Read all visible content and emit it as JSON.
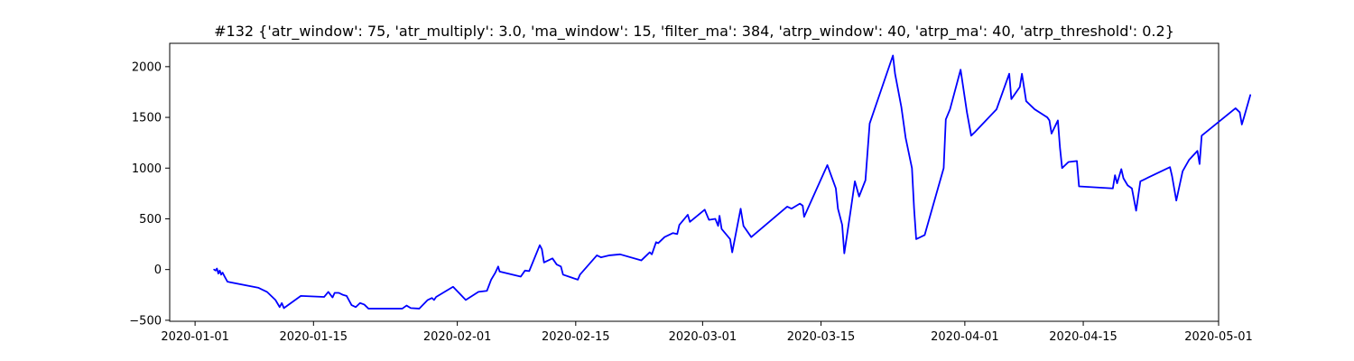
{
  "chart_data": {
    "type": "line",
    "title": "#132 {'atr_window': 75, 'atr_multiply': 3.0, 'ma_window': 15, 'filter_ma': 384, 'atrp_window': 40, 'atrp_ma': 40, 'atrp_threshold': 0.2}",
    "xlabel": "",
    "ylabel": "",
    "grid": false,
    "legend": "none",
    "x_axis": {
      "type": "date",
      "range": [
        "2019-12-29",
        "2020-05-01"
      ],
      "ticks": [
        "2020-01-01",
        "2020-01-15",
        "2020-02-01",
        "2020-02-15",
        "2020-03-01",
        "2020-03-15",
        "2020-04-01",
        "2020-04-15",
        "2020-05-01"
      ]
    },
    "y_axis": {
      "range": [
        -510,
        2230
      ],
      "ticks": [
        -500,
        0,
        500,
        1000,
        1500,
        2000
      ],
      "tick_labels": [
        "−500",
        "0",
        "500",
        "1000",
        "1500",
        "2000"
      ]
    },
    "series": [
      {
        "name": "",
        "color": "#0000ff",
        "points": [
          [
            "2020-01-03T06:00",
            0
          ],
          [
            "2020-01-03T10:00",
            -10
          ],
          [
            "2020-01-03T14:00",
            10
          ],
          [
            "2020-01-03T18:00",
            -40
          ],
          [
            "2020-01-03T22:00",
            -10
          ],
          [
            "2020-01-04T02:00",
            -50
          ],
          [
            "2020-01-04T06:00",
            -30
          ],
          [
            "2020-01-04T12:00",
            -70
          ],
          [
            "2020-01-04T20:00",
            -120
          ],
          [
            "2020-01-08T12:00",
            -180
          ],
          [
            "2020-01-09T12:00",
            -220
          ],
          [
            "2020-01-10T12:00",
            -300
          ],
          [
            "2020-01-11T00:00",
            -370
          ],
          [
            "2020-01-11T06:00",
            -330
          ],
          [
            "2020-01-11T12:00",
            -380
          ],
          [
            "2020-01-13T12:00",
            -260
          ],
          [
            "2020-01-16T06:00",
            -270
          ],
          [
            "2020-01-16T18:00",
            -220
          ],
          [
            "2020-01-17T06:00",
            -275
          ],
          [
            "2020-01-17T12:00",
            -230
          ],
          [
            "2020-01-18T00:00",
            -230
          ],
          [
            "2020-01-18T12:00",
            -250
          ],
          [
            "2020-01-18T22:00",
            -260
          ],
          [
            "2020-01-19T12:00",
            -350
          ],
          [
            "2020-01-20T00:00",
            -370
          ],
          [
            "2020-01-20T12:00",
            -330
          ],
          [
            "2020-01-21T00:00",
            -345
          ],
          [
            "2020-01-21T12:00",
            -385
          ],
          [
            "2020-01-25T12:00",
            -385
          ],
          [
            "2020-01-26T00:00",
            -355
          ],
          [
            "2020-01-26T12:00",
            -380
          ],
          [
            "2020-01-27T12:00",
            -385
          ],
          [
            "2020-01-28T12:00",
            -300
          ],
          [
            "2020-01-29T00:00",
            -280
          ],
          [
            "2020-01-29T06:00",
            -300
          ],
          [
            "2020-01-29T12:00",
            -270
          ],
          [
            "2020-01-31T12:00",
            -170
          ],
          [
            "2020-02-02T00:00",
            -300
          ],
          [
            "2020-02-03T12:00",
            -220
          ],
          [
            "2020-02-04T12:00",
            -210
          ],
          [
            "2020-02-05T00:00",
            -100
          ],
          [
            "2020-02-05T12:00",
            -30
          ],
          [
            "2020-02-05T20:00",
            30
          ],
          [
            "2020-02-06T00:00",
            -20
          ],
          [
            "2020-02-08T12:00",
            -70
          ],
          [
            "2020-02-09T00:00",
            -10
          ],
          [
            "2020-02-09T12:00",
            -15
          ],
          [
            "2020-02-10T18:00",
            240
          ],
          [
            "2020-02-11T00:00",
            200
          ],
          [
            "2020-02-11T06:00",
            70
          ],
          [
            "2020-02-12T06:00",
            110
          ],
          [
            "2020-02-12T18:00",
            50
          ],
          [
            "2020-02-13T06:00",
            30
          ],
          [
            "2020-02-13T12:00",
            -50
          ],
          [
            "2020-02-15T06:00",
            -100
          ],
          [
            "2020-02-15T12:00",
            -50
          ],
          [
            "2020-02-17T12:00",
            140
          ],
          [
            "2020-02-18T00:00",
            120
          ],
          [
            "2020-02-19T00:00",
            140
          ],
          [
            "2020-02-20T06:00",
            150
          ],
          [
            "2020-02-22T18:00",
            90
          ],
          [
            "2020-02-23T18:00",
            170
          ],
          [
            "2020-02-24T00:00",
            150
          ],
          [
            "2020-02-24T12:00",
            270
          ],
          [
            "2020-02-24T18:00",
            260
          ],
          [
            "2020-02-25T12:00",
            320
          ],
          [
            "2020-02-26T12:00",
            360
          ],
          [
            "2020-02-27T00:00",
            350
          ],
          [
            "2020-02-27T06:00",
            440
          ],
          [
            "2020-02-27T18:00",
            490
          ],
          [
            "2020-02-28T06:00",
            540
          ],
          [
            "2020-02-28T12:00",
            470
          ],
          [
            "2020-03-01T06:00",
            590
          ],
          [
            "2020-03-01T18:00",
            490
          ],
          [
            "2020-03-02T12:00",
            500
          ],
          [
            "2020-03-02T20:00",
            430
          ],
          [
            "2020-03-03T00:00",
            530
          ],
          [
            "2020-03-03T06:00",
            400
          ],
          [
            "2020-03-03T18:00",
            350
          ],
          [
            "2020-03-04T06:00",
            300
          ],
          [
            "2020-03-04T12:00",
            170
          ],
          [
            "2020-03-05T12:00",
            600
          ],
          [
            "2020-03-05T20:00",
            430
          ],
          [
            "2020-03-06T18:00",
            320
          ],
          [
            "2020-03-11T00:00",
            620
          ],
          [
            "2020-03-11T12:00",
            600
          ],
          [
            "2020-03-12T12:00",
            650
          ],
          [
            "2020-03-12T20:00",
            630
          ],
          [
            "2020-03-13T00:00",
            520
          ],
          [
            "2020-03-15T18:00",
            1030
          ],
          [
            "2020-03-16T18:00",
            800
          ],
          [
            "2020-03-17T00:00",
            600
          ],
          [
            "2020-03-17T12:00",
            440
          ],
          [
            "2020-03-17T18:00",
            160
          ],
          [
            "2020-03-18T00:00",
            300
          ],
          [
            "2020-03-18T12:00",
            580
          ],
          [
            "2020-03-19T00:00",
            870
          ],
          [
            "2020-03-19T12:00",
            720
          ],
          [
            "2020-03-20T06:00",
            880
          ],
          [
            "2020-03-20T18:00",
            1440
          ],
          [
            "2020-03-23T12:00",
            2110
          ],
          [
            "2020-03-23T18:00",
            1930
          ],
          [
            "2020-03-24T12:00",
            1600
          ],
          [
            "2020-03-25T00:00",
            1300
          ],
          [
            "2020-03-25T18:00",
            1000
          ],
          [
            "2020-03-26T00:00",
            600
          ],
          [
            "2020-03-26T06:00",
            300
          ],
          [
            "2020-03-27T06:00",
            340
          ],
          [
            "2020-03-29T12:00",
            1000
          ],
          [
            "2020-03-29T18:00",
            1480
          ],
          [
            "2020-03-30T06:00",
            1580
          ],
          [
            "2020-03-31T12:00",
            1970
          ],
          [
            "2020-04-01T06:00",
            1550
          ],
          [
            "2020-04-01T18:00",
            1320
          ],
          [
            "2020-04-02T06:00",
            1360
          ],
          [
            "2020-04-04T18:00",
            1580
          ],
          [
            "2020-04-06T06:00",
            1930
          ],
          [
            "2020-04-06T12:00",
            1680
          ],
          [
            "2020-04-07T12:00",
            1800
          ],
          [
            "2020-04-07T18:00",
            1930
          ],
          [
            "2020-04-08T06:00",
            1660
          ],
          [
            "2020-04-09T06:00",
            1580
          ],
          [
            "2020-04-10T18:00",
            1500
          ],
          [
            "2020-04-11T00:00",
            1470
          ],
          [
            "2020-04-11T06:00",
            1340
          ],
          [
            "2020-04-12T00:00",
            1470
          ],
          [
            "2020-04-12T06:00",
            1200
          ],
          [
            "2020-04-12T12:00",
            1000
          ],
          [
            "2020-04-13T06:00",
            1060
          ],
          [
            "2020-04-14T06:00",
            1070
          ],
          [
            "2020-04-14T12:00",
            820
          ],
          [
            "2020-04-18T12:00",
            800
          ],
          [
            "2020-04-18T18:00",
            930
          ],
          [
            "2020-04-19T00:00",
            850
          ],
          [
            "2020-04-19T12:00",
            990
          ],
          [
            "2020-04-19T18:00",
            900
          ],
          [
            "2020-04-20T06:00",
            830
          ],
          [
            "2020-04-20T18:00",
            800
          ],
          [
            "2020-04-21T06:00",
            580
          ],
          [
            "2020-04-21T18:00",
            870
          ],
          [
            "2020-04-25T06:00",
            1010
          ],
          [
            "2020-04-25T12:00",
            920
          ],
          [
            "2020-04-26T00:00",
            680
          ],
          [
            "2020-04-26T18:00",
            970
          ],
          [
            "2020-04-27T12:00",
            1080
          ],
          [
            "2020-04-28T12:00",
            1170
          ],
          [
            "2020-04-28T18:00",
            1040
          ],
          [
            "2020-04-29T00:00",
            1320
          ],
          [
            "2020-05-03T00:00",
            1590
          ],
          [
            "2020-05-03T12:00",
            1550
          ],
          [
            "2020-05-03T18:00",
            1430
          ],
          [
            "2020-05-04T00:00",
            1500
          ],
          [
            "2020-05-04T18:00",
            1720
          ]
        ]
      }
    ]
  }
}
